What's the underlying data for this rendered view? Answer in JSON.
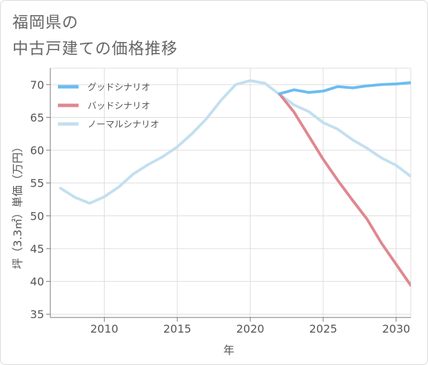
{
  "title_lines": [
    "福岡県の",
    "中古戸建ての価格推移"
  ],
  "chart_data": {
    "type": "line",
    "title": "福岡県の中古戸建ての価格推移",
    "xlabel": "年",
    "ylabel": "坪（3.3㎡）単価（万円）",
    "xlim": [
      2006.3,
      2031
    ],
    "ylim": [
      34.5,
      72.5
    ],
    "xticks": [
      2010,
      2015,
      2020,
      2025,
      2030
    ],
    "yticks": [
      35,
      40,
      45,
      50,
      55,
      60,
      65,
      70
    ],
    "grid": true,
    "legend_position": "top-left",
    "series": [
      {
        "name": "グッドシナリオ",
        "color": "#6cbcf0",
        "x": [
          2022,
          2023,
          2024,
          2025,
          2026,
          2027,
          2028,
          2029,
          2030,
          2031
        ],
        "y": [
          68.6,
          69.2,
          68.8,
          69.0,
          69.7,
          69.5,
          69.8,
          70.0,
          70.1,
          70.3
        ]
      },
      {
        "name": "バッドシナリオ",
        "color": "#e0878f",
        "x": [
          2022,
          2023,
          2024,
          2025,
          2026,
          2027,
          2028,
          2029,
          2030,
          2031
        ],
        "y": [
          68.6,
          65.8,
          62.2,
          58.6,
          55.4,
          52.4,
          49.5,
          45.8,
          42.6,
          39.4
        ]
      },
      {
        "name": "ノーマルシナリオ",
        "color": "#c3dff0",
        "x": [
          2007,
          2008,
          2009,
          2010,
          2011,
          2012,
          2013,
          2014,
          2015,
          2016,
          2017,
          2018,
          2019,
          2020,
          2021,
          2022,
          2023,
          2024,
          2025,
          2026,
          2027,
          2028,
          2029,
          2030,
          2031
        ],
        "y": [
          54.2,
          52.8,
          51.9,
          52.9,
          54.4,
          56.4,
          57.8,
          59.0,
          60.5,
          62.5,
          64.8,
          67.6,
          70.0,
          70.6,
          70.2,
          68.5,
          66.9,
          65.9,
          64.2,
          63.2,
          61.6,
          60.3,
          58.8,
          57.7,
          56.0
        ]
      }
    ]
  }
}
